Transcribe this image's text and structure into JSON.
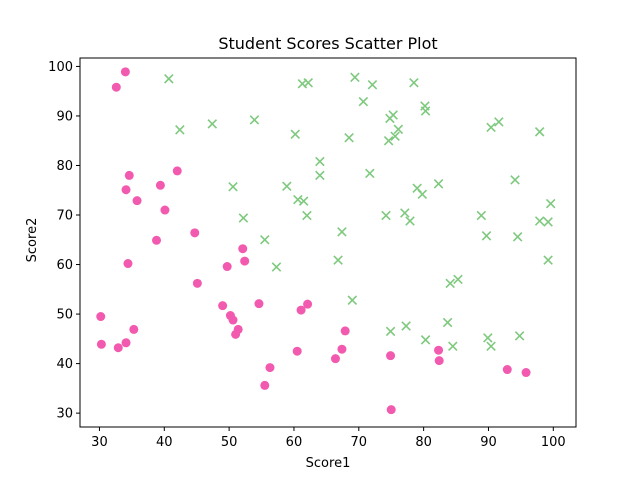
{
  "chart_data": {
    "type": "scatter",
    "title": "Student Scores Scatter Plot",
    "xlabel": "Score1",
    "ylabel": "Score2",
    "xlim": [
      27,
      103.5
    ],
    "ylim": [
      27.2,
      101.7
    ],
    "xticks": [
      30,
      40,
      50,
      60,
      70,
      80,
      90,
      100
    ],
    "yticks": [
      30,
      40,
      50,
      60,
      70,
      80,
      90,
      100
    ],
    "grid": false,
    "legend": "none",
    "series": [
      {
        "marker": "circle",
        "color": "#f25ab0",
        "points": [
          [
            34.0,
            98.9
          ],
          [
            32.6,
            95.8
          ],
          [
            42.0,
            78.9
          ],
          [
            34.6,
            78.0
          ],
          [
            39.4,
            76.0
          ],
          [
            34.1,
            75.1
          ],
          [
            35.8,
            72.9
          ],
          [
            40.1,
            71.0
          ],
          [
            44.7,
            66.4
          ],
          [
            38.8,
            64.9
          ],
          [
            52.1,
            63.2
          ],
          [
            52.4,
            60.7
          ],
          [
            34.4,
            60.2
          ],
          [
            49.7,
            59.6
          ],
          [
            45.1,
            56.2
          ],
          [
            61.1,
            50.8
          ],
          [
            62.1,
            52.0
          ],
          [
            54.6,
            52.1
          ],
          [
            49.0,
            51.7
          ],
          [
            30.2,
            49.5
          ],
          [
            50.2,
            49.7
          ],
          [
            50.6,
            48.8
          ],
          [
            35.3,
            46.9
          ],
          [
            51.4,
            46.9
          ],
          [
            51.0,
            45.9
          ],
          [
            67.9,
            46.6
          ],
          [
            30.3,
            43.9
          ],
          [
            34.1,
            44.2
          ],
          [
            32.9,
            43.2
          ],
          [
            60.5,
            42.5
          ],
          [
            67.4,
            42.9
          ],
          [
            82.3,
            42.7
          ],
          [
            66.4,
            41.0
          ],
          [
            74.9,
            41.6
          ],
          [
            82.4,
            40.6
          ],
          [
            56.3,
            39.2
          ],
          [
            92.9,
            38.8
          ],
          [
            95.8,
            38.2
          ],
          [
            55.5,
            35.6
          ],
          [
            75.0,
            30.7
          ]
        ]
      },
      {
        "marker": "x",
        "color": "#7fc97f",
        "points": [
          [
            40.7,
            97.5
          ],
          [
            69.4,
            97.8
          ],
          [
            61.3,
            96.5
          ],
          [
            62.2,
            96.7
          ],
          [
            72.1,
            96.3
          ],
          [
            78.5,
            96.7
          ],
          [
            70.7,
            92.9
          ],
          [
            80.2,
            92.0
          ],
          [
            80.3,
            91.0
          ],
          [
            75.3,
            90.2
          ],
          [
            74.8,
            89.5
          ],
          [
            53.9,
            89.2
          ],
          [
            91.6,
            88.8
          ],
          [
            47.4,
            88.4
          ],
          [
            90.4,
            87.7
          ],
          [
            42.4,
            87.2
          ],
          [
            76.1,
            87.3
          ],
          [
            97.9,
            86.8
          ],
          [
            60.2,
            86.3
          ],
          [
            75.6,
            85.9
          ],
          [
            68.5,
            85.6
          ],
          [
            74.6,
            85.0
          ],
          [
            64.0,
            80.8
          ],
          [
            71.7,
            78.4
          ],
          [
            64.0,
            78.0
          ],
          [
            94.1,
            77.1
          ],
          [
            82.3,
            76.3
          ],
          [
            50.6,
            75.7
          ],
          [
            58.9,
            75.8
          ],
          [
            79.0,
            75.4
          ],
          [
            79.8,
            74.2
          ],
          [
            60.6,
            73.1
          ],
          [
            61.5,
            72.8
          ],
          [
            99.6,
            72.3
          ],
          [
            62.0,
            69.9
          ],
          [
            74.2,
            69.9
          ],
          [
            88.9,
            69.9
          ],
          [
            52.2,
            69.4
          ],
          [
            77.1,
            70.4
          ],
          [
            77.9,
            68.8
          ],
          [
            97.9,
            68.8
          ],
          [
            99.2,
            68.6
          ],
          [
            67.4,
            66.6
          ],
          [
            89.7,
            65.8
          ],
          [
            94.5,
            65.6
          ],
          [
            55.5,
            65.0
          ],
          [
            57.3,
            59.5
          ],
          [
            66.8,
            60.9
          ],
          [
            99.2,
            60.9
          ],
          [
            85.3,
            57.0
          ],
          [
            84.1,
            56.2
          ],
          [
            69.0,
            52.8
          ],
          [
            83.7,
            48.3
          ],
          [
            77.3,
            47.6
          ],
          [
            74.9,
            46.5
          ],
          [
            94.8,
            45.6
          ],
          [
            80.3,
            44.8
          ],
          [
            89.9,
            45.2
          ],
          [
            90.4,
            43.5
          ],
          [
            84.5,
            43.5
          ]
        ]
      }
    ]
  }
}
